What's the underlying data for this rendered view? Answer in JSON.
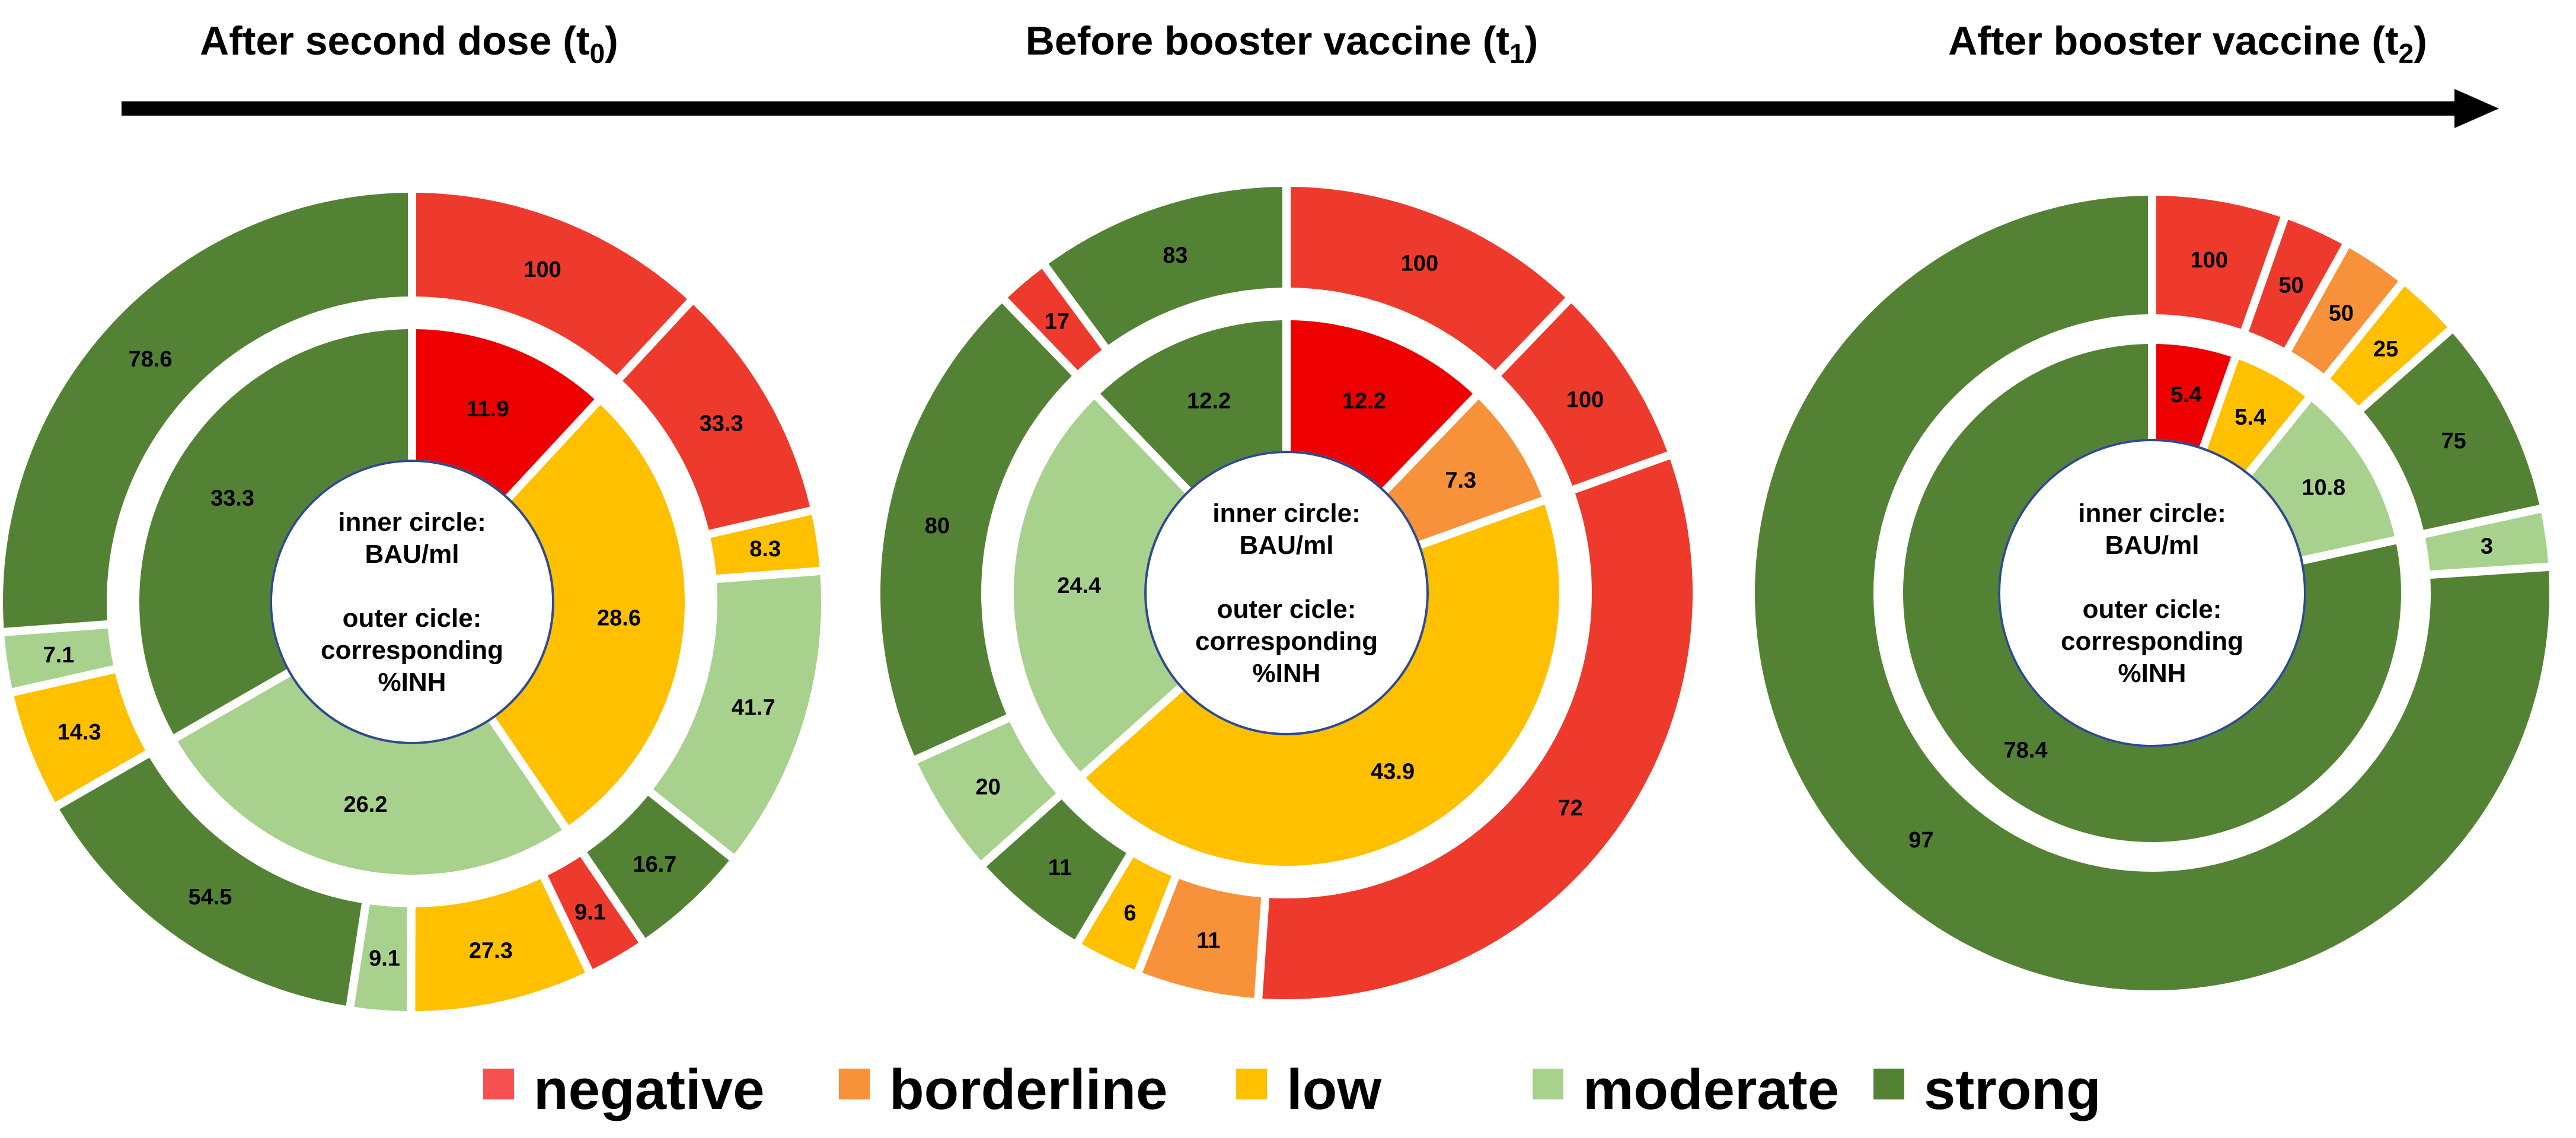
{
  "chart_data": {
    "type": "nested-donut",
    "colors": {
      "negative": "#EE3A2C",
      "negative_inner": "#EE0000",
      "borderline": "#F7923A",
      "low": "#FFC000",
      "moderate": "#A9D18E",
      "strong": "#548235"
    },
    "legend": [
      {
        "key": "negative",
        "label": "negative",
        "color": "#F75050"
      },
      {
        "key": "borderline",
        "label": "borderline",
        "color": "#F7923A"
      },
      {
        "key": "low",
        "label": "low",
        "color": "#FFC000"
      },
      {
        "key": "moderate",
        "label": "moderate",
        "color": "#A9D18E"
      },
      {
        "key": "strong",
        "label": "strong",
        "color": "#548235"
      }
    ],
    "center_text": [
      "inner circle:",
      "BAU/ml",
      "",
      "outer cicle:",
      "corresponding",
      "%INH"
    ],
    "charts": [
      {
        "title": "After second dose (t",
        "subscript": "0",
        "suffix": ")",
        "inner": [
          {
            "cat": "negative",
            "value": 11.9,
            "label": "11.9"
          },
          {
            "cat": "low",
            "value": 28.6,
            "label": "28.6"
          },
          {
            "cat": "moderate",
            "value": 26.2,
            "label": "26.2"
          },
          {
            "cat": "strong",
            "value": 33.3,
            "label": "33.3"
          }
        ],
        "outer": [
          {
            "parent": 0,
            "cat": "negative",
            "value": 100,
            "label": "100"
          },
          {
            "parent": 1,
            "cat": "negative",
            "value": 33.3,
            "label": "33.3"
          },
          {
            "parent": 1,
            "cat": "low",
            "value": 8.3,
            "label": "8.3"
          },
          {
            "parent": 1,
            "cat": "moderate",
            "value": 41.7,
            "label": "41.7"
          },
          {
            "parent": 1,
            "cat": "strong",
            "value": 16.7,
            "label": "16.7"
          },
          {
            "parent": 2,
            "cat": "negative",
            "value": 9.1,
            "label": "9.1"
          },
          {
            "parent": 2,
            "cat": "low",
            "value": 27.3,
            "label": "27.3"
          },
          {
            "parent": 2,
            "cat": "moderate",
            "value": 9.1,
            "label": "9.1"
          },
          {
            "parent": 2,
            "cat": "strong",
            "value": 54.5,
            "label": "54.5"
          },
          {
            "parent": 3,
            "cat": "low",
            "value": 14.3,
            "label": "14.3"
          },
          {
            "parent": 3,
            "cat": "moderate",
            "value": 7.1,
            "label": "7.1"
          },
          {
            "parent": 3,
            "cat": "strong",
            "value": 78.6,
            "label": "78.6"
          }
        ]
      },
      {
        "title": "Before booster vaccine (t",
        "subscript": "1",
        "suffix": ")",
        "inner": [
          {
            "cat": "negative",
            "value": 12.2,
            "label": "12.2"
          },
          {
            "cat": "borderline",
            "value": 7.3,
            "label": "7.3"
          },
          {
            "cat": "low",
            "value": 43.9,
            "label": "43.9"
          },
          {
            "cat": "moderate",
            "value": 24.4,
            "label": "24.4"
          },
          {
            "cat": "strong",
            "value": 12.2,
            "label": "12.2"
          }
        ],
        "outer": [
          {
            "parent": 0,
            "cat": "negative",
            "value": 100,
            "label": "100"
          },
          {
            "parent": 1,
            "cat": "negative",
            "value": 100,
            "label": "100"
          },
          {
            "parent": 2,
            "cat": "negative",
            "value": 72,
            "label": "72"
          },
          {
            "parent": 2,
            "cat": "borderline",
            "value": 11,
            "label": "11"
          },
          {
            "parent": 2,
            "cat": "low",
            "value": 6,
            "label": "6"
          },
          {
            "parent": 2,
            "cat": "strong",
            "value": 11,
            "label": "11"
          },
          {
            "parent": 3,
            "cat": "moderate",
            "value": 20,
            "label": "20"
          },
          {
            "parent": 3,
            "cat": "strong",
            "value": 80,
            "label": "80"
          },
          {
            "parent": 4,
            "cat": "negative",
            "value": 17,
            "label": "17"
          },
          {
            "parent": 4,
            "cat": "strong",
            "value": 83,
            "label": "83"
          }
        ]
      },
      {
        "title": "After booster vaccine (t",
        "subscript": "2",
        "suffix": ")",
        "inner": [
          {
            "cat": "negative",
            "value": 5.4,
            "label": "5.4"
          },
          {
            "cat": "low",
            "value": 5.4,
            "label": "5.4"
          },
          {
            "cat": "moderate",
            "value": 10.8,
            "label": "10.8"
          },
          {
            "cat": "strong",
            "value": 78.4,
            "label": "78.4"
          }
        ],
        "outer": [
          {
            "parent": 0,
            "cat": "negative",
            "value": 100,
            "label": "100"
          },
          {
            "parent": 1,
            "cat": "negative",
            "value": 50,
            "label": "50"
          },
          {
            "parent": 1,
            "cat": "borderline",
            "value": 50,
            "label": "50"
          },
          {
            "parent": 2,
            "cat": "low",
            "value": 25,
            "label": "25"
          },
          {
            "parent": 2,
            "cat": "strong",
            "value": 75,
            "label": "75"
          },
          {
            "parent": 3,
            "cat": "moderate",
            "value": 3,
            "label": "3"
          },
          {
            "parent": 3,
            "cat": "strong",
            "value": 97,
            "label": "97"
          }
        ]
      }
    ]
  }
}
